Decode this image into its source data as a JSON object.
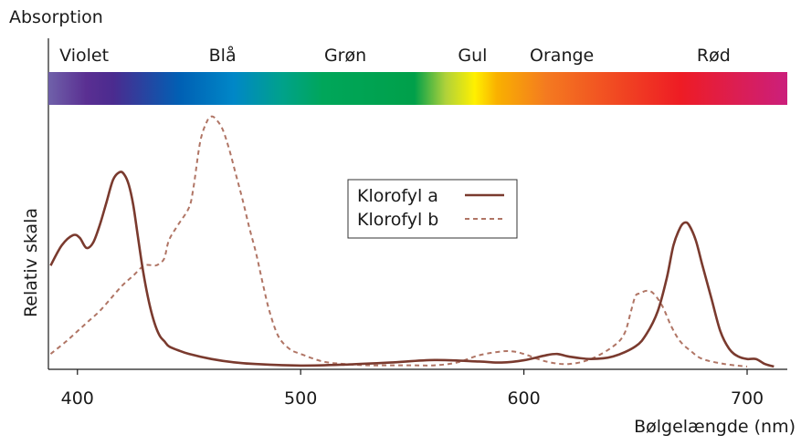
{
  "chart_data": {
    "type": "line",
    "y_axis_title": "Absorption",
    "ylabel": "Relativ skala",
    "xlabel": "Bølgelængde (nm)",
    "xlim": [
      387,
      718
    ],
    "ylim": [
      0,
      1
    ],
    "x_ticks": [
      400,
      500,
      600,
      700
    ],
    "x_tick_labels": [
      "400",
      "500",
      "600",
      "700"
    ],
    "spectrum_band": {
      "labels": [
        {
          "text": "Violet",
          "x": 403
        },
        {
          "text": "Blå",
          "x": 465
        },
        {
          "text": "Grøn",
          "x": 520
        },
        {
          "text": "Gul",
          "x": 577
        },
        {
          "text": "Orange",
          "x": 617
        },
        {
          "text": "Rød",
          "x": 685
        }
      ],
      "color_stops": [
        {
          "x": 388,
          "color": "#6e5ea8"
        },
        {
          "x": 404,
          "color": "#5a2f92"
        },
        {
          "x": 416,
          "color": "#4b2b8f"
        },
        {
          "x": 446,
          "color": "#0060b4"
        },
        {
          "x": 470,
          "color": "#0087c7"
        },
        {
          "x": 492,
          "color": "#00a28a"
        },
        {
          "x": 510,
          "color": "#00a65a"
        },
        {
          "x": 551,
          "color": "#00a04a"
        },
        {
          "x": 565,
          "color": "#b0d23a"
        },
        {
          "x": 578,
          "color": "#fff000"
        },
        {
          "x": 588,
          "color": "#f9b000"
        },
        {
          "x": 610,
          "color": "#f47a20"
        },
        {
          "x": 670,
          "color": "#ee1c24"
        },
        {
          "x": 717,
          "color": "#cc1f7a"
        }
      ]
    },
    "legend": {
      "position": "center",
      "entries": [
        "Klorofyl a",
        "Klorofyl b"
      ]
    },
    "series": [
      {
        "name": "Klorofyl a",
        "style": "solid",
        "color": "#7a3a2e",
        "x": [
          388,
          393,
          398,
          401,
          404,
          407,
          410,
          413,
          416,
          419,
          421,
          423,
          425,
          427,
          429,
          431,
          433,
          435,
          437,
          439,
          441,
          445,
          450,
          460,
          470,
          480,
          500,
          520,
          540,
          560,
          580,
          590,
          600,
          610,
          615,
          620,
          630,
          640,
          650,
          655,
          660,
          664,
          667,
          670,
          672,
          674,
          677,
          680,
          684,
          688,
          692,
          696,
          700,
          704,
          708,
          712
        ],
        "y": [
          0.4,
          0.48,
          0.52,
          0.51,
          0.47,
          0.49,
          0.56,
          0.65,
          0.74,
          0.77,
          0.76,
          0.72,
          0.64,
          0.52,
          0.4,
          0.3,
          0.22,
          0.16,
          0.12,
          0.1,
          0.08,
          0.065,
          0.05,
          0.03,
          0.017,
          0.01,
          0.004,
          0.008,
          0.016,
          0.026,
          0.02,
          0.016,
          0.025,
          0.045,
          0.05,
          0.04,
          0.03,
          0.04,
          0.08,
          0.13,
          0.22,
          0.35,
          0.48,
          0.55,
          0.57,
          0.56,
          0.5,
          0.4,
          0.27,
          0.14,
          0.07,
          0.04,
          0.03,
          0.03,
          0.01,
          0.0
        ]
      },
      {
        "name": "Klorofyl b",
        "style": "dashed",
        "color": "#b07565",
        "x": [
          388,
          395,
          400,
          405,
          410,
          415,
          420,
          425,
          430,
          435,
          437,
          439,
          441,
          445,
          450,
          452,
          455,
          458,
          460,
          462,
          465,
          468,
          471,
          474,
          477,
          480,
          483,
          486,
          490,
          495,
          500,
          510,
          520,
          530,
          540,
          550,
          560,
          570,
          580,
          590,
          595,
          600,
          610,
          620,
          630,
          640,
          645,
          648,
          650,
          652,
          655,
          658,
          662,
          666,
          670,
          675,
          680,
          690,
          700
        ],
        "y": [
          0.05,
          0.1,
          0.14,
          0.18,
          0.22,
          0.27,
          0.32,
          0.36,
          0.4,
          0.4,
          0.41,
          0.43,
          0.5,
          0.56,
          0.63,
          0.71,
          0.89,
          0.97,
          0.99,
          0.98,
          0.94,
          0.86,
          0.76,
          0.66,
          0.55,
          0.45,
          0.33,
          0.22,
          0.12,
          0.07,
          0.05,
          0.02,
          0.01,
          0.005,
          0.005,
          0.005,
          0.005,
          0.016,
          0.045,
          0.06,
          0.06,
          0.05,
          0.02,
          0.01,
          0.03,
          0.08,
          0.13,
          0.22,
          0.28,
          0.29,
          0.3,
          0.29,
          0.24,
          0.16,
          0.1,
          0.06,
          0.03,
          0.01,
          0.0
        ]
      }
    ]
  }
}
